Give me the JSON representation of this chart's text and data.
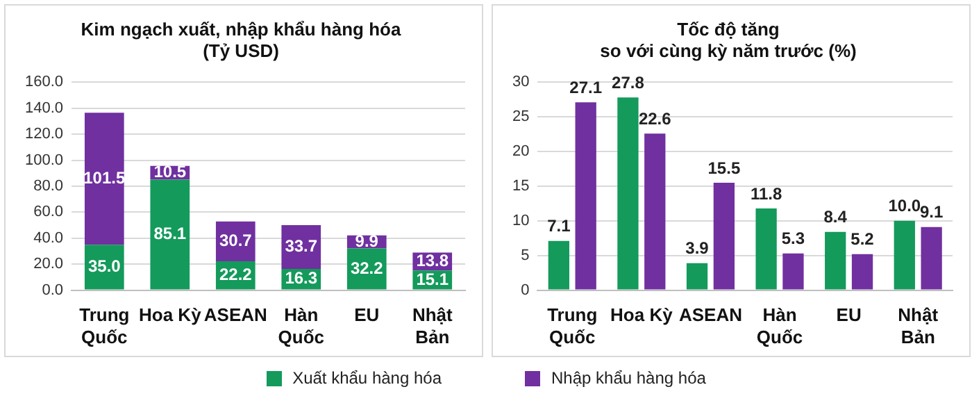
{
  "chart_data": [
    {
      "type": "bar",
      "title": "Kim ngạch xuất, nhập khẩu hàng hóa\n(Tỷ USD)",
      "categories": [
        "Trung\nQuốc",
        "Hoa Kỳ",
        "ASEAN",
        "Hàn\nQuốc",
        "EU",
        "Nhật\nBản"
      ],
      "stacked": true,
      "series": [
        {
          "name": "Xuất khẩu hàng hóa",
          "color": "#149a5b",
          "values": [
            35.0,
            85.1,
            22.2,
            16.3,
            32.2,
            15.1
          ],
          "value_labels": [
            "35.0",
            "85.1",
            "22.2",
            "16.3",
            "32.2",
            "15.1"
          ]
        },
        {
          "name": "Nhập khẩu hàng hóa",
          "color": "#7030a0",
          "values": [
            101.5,
            10.5,
            30.7,
            33.7,
            9.9,
            13.8
          ],
          "value_labels": [
            "101.5",
            "10.5",
            "30.7",
            "33.7",
            "9.9",
            "13.8"
          ]
        }
      ],
      "ylim": [
        0,
        160
      ],
      "yticks": [
        {
          "value": 0,
          "label": "0.0"
        },
        {
          "value": 20,
          "label": "20.0"
        },
        {
          "value": 40,
          "label": "40.0"
        },
        {
          "value": 60,
          "label": "60.0"
        },
        {
          "value": 80,
          "label": "80.0"
        },
        {
          "value": 100,
          "label": "100.0"
        },
        {
          "value": 120,
          "label": "120.0"
        },
        {
          "value": 140,
          "label": "140.0"
        },
        {
          "value": 160,
          "label": "160.0"
        }
      ],
      "grid": "y",
      "legend": "bottom"
    },
    {
      "type": "bar",
      "title": "Tốc độ tăng\nso với cùng kỳ năm trước (%)",
      "categories": [
        "Trung\nQuốc",
        "Hoa Kỳ",
        "ASEAN",
        "Hàn\nQuốc",
        "EU",
        "Nhật\nBản"
      ],
      "series": [
        {
          "color": "#149a5b",
          "values": [
            7.1,
            27.8,
            3.9,
            11.8,
            8.4,
            10.0
          ],
          "value_labels": [
            "7.1",
            "27.8",
            "3.9",
            "11.8",
            "8.4",
            "10.0"
          ]
        },
        {
          "color": "#7030a0",
          "values": [
            27.1,
            22.6,
            15.5,
            5.3,
            5.2,
            9.1
          ],
          "value_labels": [
            "27.1",
            "22.6",
            "15.5",
            "5.3",
            "5.2",
            "9.1"
          ]
        }
      ],
      "ylim": [
        0,
        30
      ],
      "yticks": [
        0,
        5,
        10,
        15,
        20,
        25,
        30
      ],
      "grid": "y"
    }
  ]
}
